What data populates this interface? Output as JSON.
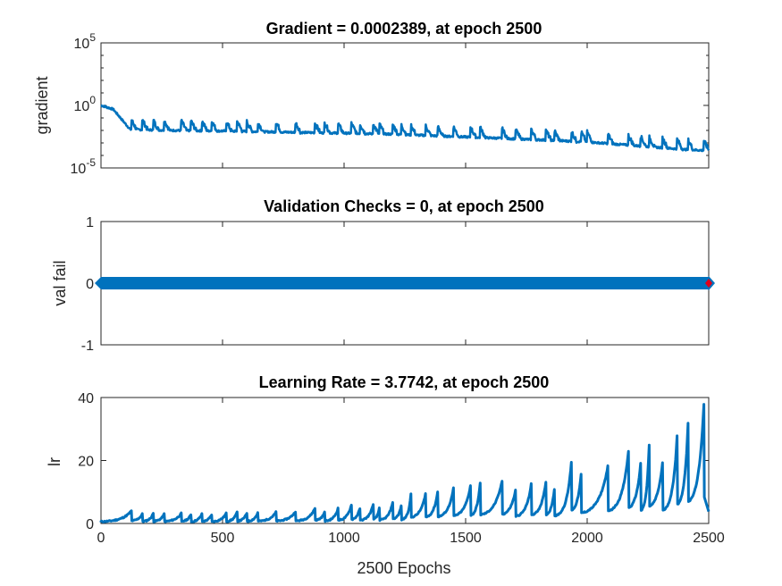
{
  "chart_data": [
    {
      "type": "line",
      "title": "Gradient = 0.0002389, at epoch 2500",
      "xlabel": "",
      "ylabel": "gradient",
      "yscale": "log",
      "xlim": [
        0,
        2500
      ],
      "ylim": [
        1e-05,
        100000
      ],
      "yticks": [
        1e-05,
        1,
        100000
      ],
      "ytick_labels": [
        {
          "base": "10",
          "exp": "-5"
        },
        {
          "base": "10",
          "exp": "0"
        },
        {
          "base": "10",
          "exp": "5"
        }
      ],
      "grid": false,
      "color": "#0072BD",
      "baseline_points": {
        "x": [
          0,
          50,
          120,
          300,
          500,
          800,
          1000,
          1200,
          1500,
          1800,
          2000,
          2200,
          2400,
          2500
        ],
        "y": [
          1.0,
          0.5,
          0.012,
          0.01,
          0.009,
          0.007,
          0.006,
          0.005,
          0.003,
          0.0018,
          0.0012,
          0.0006,
          0.0003,
          0.00024
        ]
      },
      "spike_epochs": [
        125,
        170,
        215,
        260,
        330,
        370,
        415,
        455,
        515,
        560,
        600,
        645,
        720,
        800,
        880,
        920,
        975,
        1030,
        1065,
        1120,
        1145,
        1200,
        1235,
        1275,
        1335,
        1385,
        1450,
        1520,
        1560,
        1650,
        1705,
        1770,
        1830,
        1865,
        1935,
        1975,
        2000,
        2085,
        2170,
        2220,
        2255,
        2310,
        2370,
        2415,
        2480
      ],
      "spike_height_factor": 6,
      "final_value": 0.0002389
    },
    {
      "type": "line",
      "title": "Validation Checks = 0, at epoch 2500",
      "xlabel": "",
      "ylabel": "val fail",
      "xlim": [
        0,
        2500
      ],
      "ylim": [
        -1,
        1
      ],
      "yticks": [
        -1,
        0,
        1
      ],
      "grid": false,
      "series": [
        {
          "x": [
            0,
            2500
          ],
          "y": [
            0,
            0
          ]
        }
      ],
      "marker": "diamond",
      "color": "#0072BD",
      "highlight_point": {
        "x": 2500,
        "y": 0,
        "color": "#E0001A"
      }
    },
    {
      "type": "line",
      "title": "Learning Rate = 3.7742, at epoch 2500",
      "xlabel": "2500 Epochs",
      "ylabel": "lr",
      "xlim": [
        0,
        2500
      ],
      "ylim": [
        0,
        40
      ],
      "yticks": [
        0,
        20,
        40
      ],
      "xticks": [
        0,
        500,
        1000,
        1500,
        2000,
        2500
      ],
      "grid": false,
      "color": "#0072BD",
      "peaks": [
        {
          "x": 125,
          "y": 4
        },
        {
          "x": 170,
          "y": 3
        },
        {
          "x": 215,
          "y": 3.2
        },
        {
          "x": 260,
          "y": 3
        },
        {
          "x": 330,
          "y": 3.2
        },
        {
          "x": 370,
          "y": 2.8
        },
        {
          "x": 415,
          "y": 3
        },
        {
          "x": 455,
          "y": 2.8
        },
        {
          "x": 515,
          "y": 3.2
        },
        {
          "x": 560,
          "y": 3.6
        },
        {
          "x": 600,
          "y": 3.3
        },
        {
          "x": 645,
          "y": 3.4
        },
        {
          "x": 720,
          "y": 3.6
        },
        {
          "x": 800,
          "y": 3.8
        },
        {
          "x": 880,
          "y": 4.8
        },
        {
          "x": 920,
          "y": 3.5
        },
        {
          "x": 975,
          "y": 4.8
        },
        {
          "x": 1030,
          "y": 6
        },
        {
          "x": 1065,
          "y": 4.8
        },
        {
          "x": 1120,
          "y": 6.2
        },
        {
          "x": 1145,
          "y": 5
        },
        {
          "x": 1200,
          "y": 6.8
        },
        {
          "x": 1235,
          "y": 5.5
        },
        {
          "x": 1275,
          "y": 9.2
        },
        {
          "x": 1335,
          "y": 9.5
        },
        {
          "x": 1385,
          "y": 10
        },
        {
          "x": 1450,
          "y": 11.2
        },
        {
          "x": 1520,
          "y": 12
        },
        {
          "x": 1560,
          "y": 12.8
        },
        {
          "x": 1650,
          "y": 13.5
        },
        {
          "x": 1705,
          "y": 10.5
        },
        {
          "x": 1770,
          "y": 12.5
        },
        {
          "x": 1830,
          "y": 13
        },
        {
          "x": 1865,
          "y": 11
        },
        {
          "x": 1935,
          "y": 19.5
        },
        {
          "x": 1975,
          "y": 15.5
        },
        {
          "x": 2085,
          "y": 18.2
        },
        {
          "x": 2170,
          "y": 23
        },
        {
          "x": 2220,
          "y": 19
        },
        {
          "x": 2255,
          "y": 25
        },
        {
          "x": 2310,
          "y": 19.2
        },
        {
          "x": 2370,
          "y": 28
        },
        {
          "x": 2415,
          "y": 32
        },
        {
          "x": 2480,
          "y": 38
        }
      ],
      "final_value": 3.7742
    }
  ]
}
